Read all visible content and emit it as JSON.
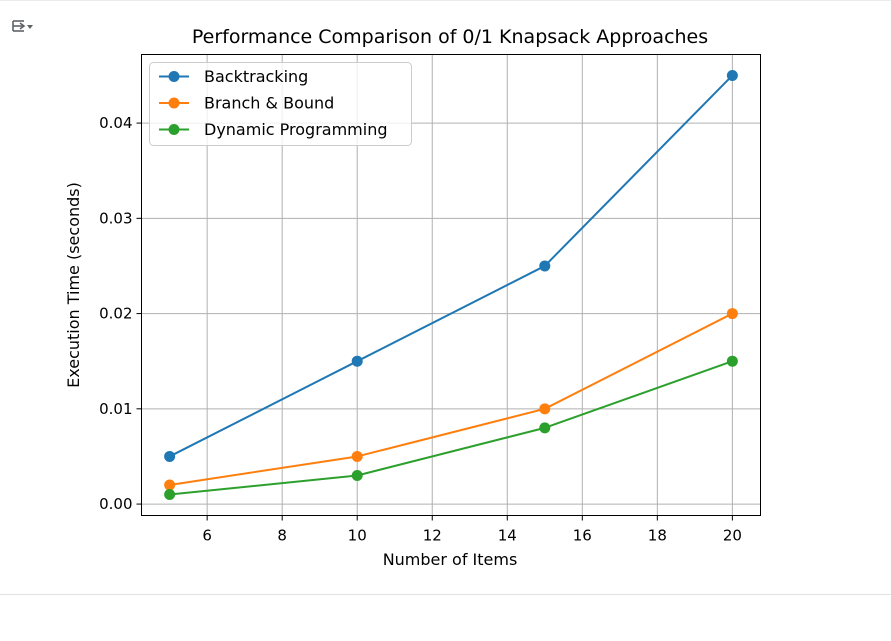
{
  "output_toggle": {
    "icon": "output-toggle-icon"
  },
  "chart_data": {
    "type": "line",
    "title": "Performance Comparison of 0/1 Knapsack Approaches",
    "xlabel": "Number of Items",
    "ylabel": "Execution Time (seconds)",
    "x": [
      5,
      10,
      15,
      20
    ],
    "series": [
      {
        "name": "Backtracking",
        "values": [
          0.005,
          0.015,
          0.025,
          0.045
        ],
        "color": "#1f77b4"
      },
      {
        "name": "Branch & Bound",
        "values": [
          0.002,
          0.005,
          0.01,
          0.02
        ],
        "color": "#ff7f0e"
      },
      {
        "name": "Dynamic Programming",
        "values": [
          0.001,
          0.003,
          0.008,
          0.015
        ],
        "color": "#2ca02c"
      }
    ],
    "xlim": [
      4.25,
      20.75
    ],
    "ylim": [
      -0.0012,
      0.0472
    ],
    "xticks": [
      6,
      8,
      10,
      12,
      14,
      16,
      18,
      20
    ],
    "xtick_labels": [
      "6",
      "8",
      "10",
      "12",
      "14",
      "16",
      "18",
      "20"
    ],
    "yticks": [
      0.0,
      0.01,
      0.02,
      0.03,
      0.04
    ],
    "ytick_labels": [
      "0.00",
      "0.01",
      "0.02",
      "0.03",
      "0.04"
    ],
    "grid": true,
    "legend_position": "top-left",
    "marker": "circle"
  }
}
